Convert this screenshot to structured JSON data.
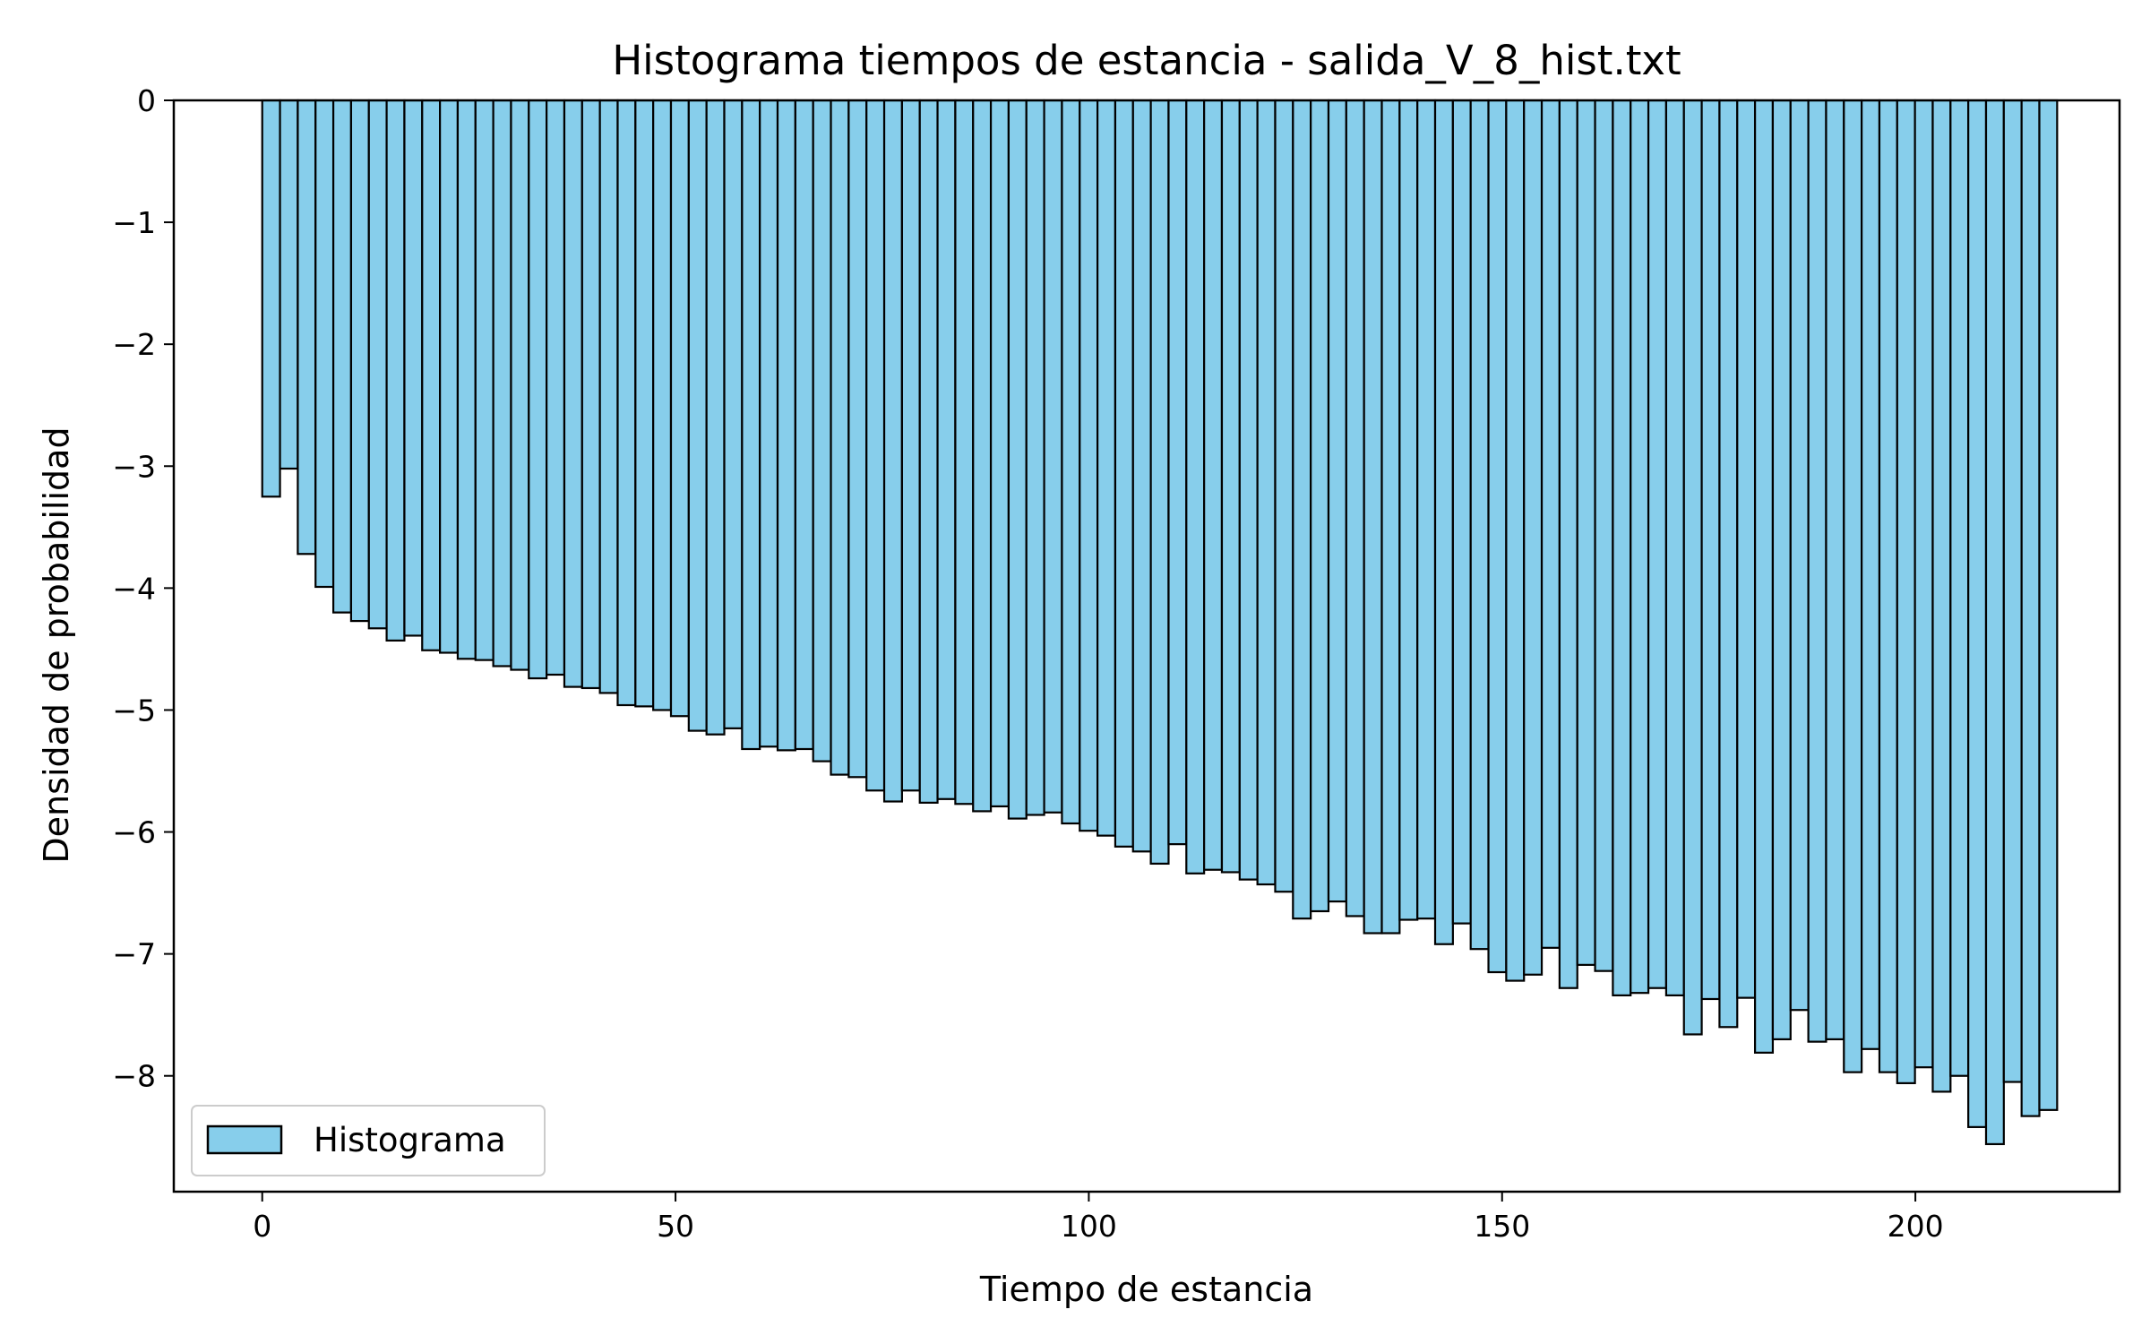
{
  "chart_data": {
    "type": "bar",
    "title": "Histograma tiempos de estancia - salida_V_8_hist.txt",
    "xlabel": "Tiempo de estancia",
    "ylabel": "Densidad de probabilidad",
    "xlim": [
      -10.7,
      224.7
    ],
    "ylim": [
      -8.95,
      0
    ],
    "xticks": [
      0,
      50,
      100,
      150,
      200
    ],
    "xtick_labels": [
      "0",
      "50",
      "100",
      "150",
      "200"
    ],
    "yticks": [
      0,
      -1,
      -2,
      -3,
      -4,
      -5,
      -6,
      -7,
      -8
    ],
    "ytick_labels": [
      "0",
      "−1",
      "−2",
      "−3",
      "−4",
      "−5",
      "−6",
      "−7",
      "−8"
    ],
    "bin_start": 0,
    "bin_width": 2.15,
    "bar_color": "#87ceeb",
    "edge_color": "#000000",
    "grid": false,
    "legend": {
      "position": "lower-left",
      "entries": [
        "Histograma"
      ]
    },
    "series": [
      {
        "name": "Histograma",
        "values": [
          -3.25,
          -3.02,
          -3.72,
          -3.99,
          -4.2,
          -4.27,
          -4.33,
          -4.43,
          -4.39,
          -4.51,
          -4.53,
          -4.58,
          -4.59,
          -4.64,
          -4.67,
          -4.74,
          -4.71,
          -4.81,
          -4.82,
          -4.86,
          -4.96,
          -4.97,
          -5.0,
          -5.05,
          -5.17,
          -5.2,
          -5.15,
          -5.32,
          -5.3,
          -5.33,
          -5.32,
          -5.42,
          -5.53,
          -5.55,
          -5.66,
          -5.75,
          -5.66,
          -5.76,
          -5.73,
          -5.77,
          -5.83,
          -5.79,
          -5.89,
          -5.86,
          -5.84,
          -5.93,
          -5.99,
          -6.03,
          -6.12,
          -6.16,
          -6.26,
          -6.1,
          -6.34,
          -6.31,
          -6.33,
          -6.39,
          -6.43,
          -6.49,
          -6.71,
          -6.65,
          -6.57,
          -6.69,
          -6.83,
          -6.83,
          -6.72,
          -6.71,
          -6.92,
          -6.75,
          -6.96,
          -7.15,
          -7.22,
          -7.17,
          -6.95,
          -7.28,
          -7.09,
          -7.14,
          -7.34,
          -7.32,
          -7.28,
          -7.34,
          -7.66,
          -7.37,
          -7.6,
          -7.36,
          -7.81,
          -7.7,
          -7.46,
          -7.72,
          -7.7,
          -7.97,
          -7.78,
          -7.97,
          -8.06,
          -7.93,
          -8.13,
          -8.0,
          -8.42,
          -8.56,
          -8.05,
          -8.33,
          -8.28
        ]
      }
    ]
  }
}
